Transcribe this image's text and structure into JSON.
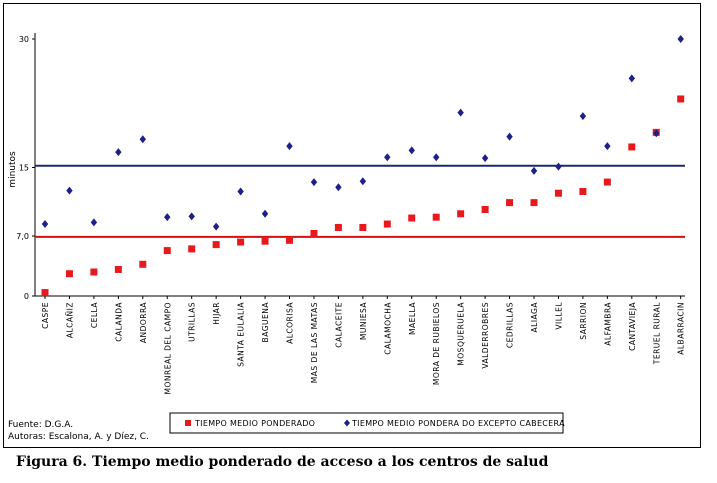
{
  "chart_data": {
    "type": "scatter",
    "ylabel": "minutos",
    "ylim": [
      0,
      30
    ],
    "yticks": [
      {
        "value": 0,
        "label": "0"
      },
      {
        "value": 7,
        "label": "7,0"
      },
      {
        "value": 15,
        "label": "15"
      },
      {
        "value": 30,
        "label": "30"
      }
    ],
    "categories": [
      "CASPE",
      "ALCAÑIZ",
      "CELLA",
      "CALANDA",
      "ANDORRA",
      "MONREAL DEL CAMPO",
      "UTRILLAS",
      "HIJAR",
      "SANTA EULALIA",
      "BAGUENA",
      "ALCORISA",
      "MAS DE LAS MATAS",
      "CALACEITE",
      "MUNIESA",
      "CALAMOCHA",
      "MAELLA",
      "MORA DE RUBIELOS",
      "MOSQUERUELA",
      "VALDERROBRES",
      "CEDRILLAS",
      "ALIAGA",
      "VILLEL",
      "SARRION",
      "ALFAMBRA",
      "CANTAVIEJA",
      "TERUEL RURAL",
      "ALBARRACIN"
    ],
    "series": [
      {
        "name": "TIEMPO MEDIO PONDERADO",
        "marker": "square",
        "color": "#e8191c",
        "values": [
          0.4,
          2.6,
          2.8,
          3.1,
          3.7,
          5.3,
          5.5,
          6.0,
          6.3,
          6.4,
          6.5,
          7.3,
          8.0,
          8.0,
          8.4,
          9.1,
          9.2,
          9.6,
          10.1,
          10.9,
          10.9,
          12.0,
          12.2,
          13.3,
          17.4,
          19.1,
          23.0
        ]
      },
      {
        "name": "TIEMPO MEDIO PONDERA DO EXCEPTO CABECERA",
        "marker": "diamond",
        "color": "#1f1f8a",
        "values": [
          8.4,
          12.3,
          8.6,
          16.8,
          18.3,
          9.2,
          9.3,
          8.1,
          12.2,
          9.6,
          17.5,
          13.3,
          12.7,
          13.4,
          16.2,
          17.0,
          16.2,
          21.4,
          16.1,
          18.6,
          14.6,
          15.1,
          21.0,
          17.5,
          25.4,
          19.0,
          30.0
        ]
      }
    ],
    "reference_lines": [
      {
        "name": "navy-line",
        "value": 15.2,
        "color": "#1a2a6c"
      },
      {
        "name": "red-line",
        "value": 6.9,
        "color": "#d61010"
      }
    ]
  },
  "footer": {
    "source": "Fuente: D.G.A.",
    "authors": "Autoras: Escalona, A. y Díez, C."
  },
  "caption": "Figura 6. Tiempo medio ponderado de acceso a los centros de salud"
}
